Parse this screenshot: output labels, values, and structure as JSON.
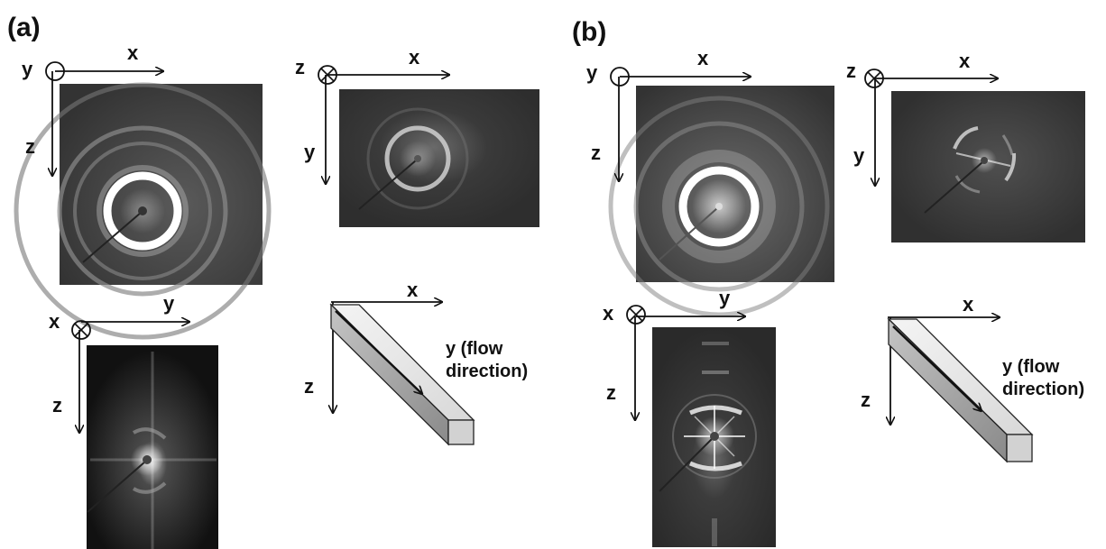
{
  "panels": [
    {
      "label": "(a)",
      "views": [
        {
          "axes": [
            "y",
            "x",
            "z"
          ],
          "normal": "out-of-page"
        },
        {
          "axes": [
            "z",
            "x",
            "y"
          ],
          "normal": "into-page"
        },
        {
          "axes": [
            "x",
            "y",
            "z"
          ],
          "normal": "into-page"
        }
      ],
      "schematic": {
        "x": "x",
        "z": "z",
        "flow1": "y (flow",
        "flow2": "direction)"
      }
    },
    {
      "label": "(b)",
      "views": [
        {
          "axes": [
            "y",
            "x",
            "z"
          ],
          "normal": "out-of-page"
        },
        {
          "axes": [
            "z",
            "x",
            "y"
          ],
          "normal": "into-page"
        },
        {
          "axes": [
            "x",
            "y",
            "z"
          ],
          "normal": "into-page"
        }
      ],
      "schematic": {
        "x": "x",
        "z": "z",
        "flow1": "y (flow",
        "flow2": "direction)"
      }
    }
  ],
  "colors": {
    "ink": "#111111",
    "detector_bg": "#3a3a3a",
    "bar_top": "#eeeeee",
    "bar_side": "#aaaaaa",
    "bar_end": "#cfcfcf"
  }
}
